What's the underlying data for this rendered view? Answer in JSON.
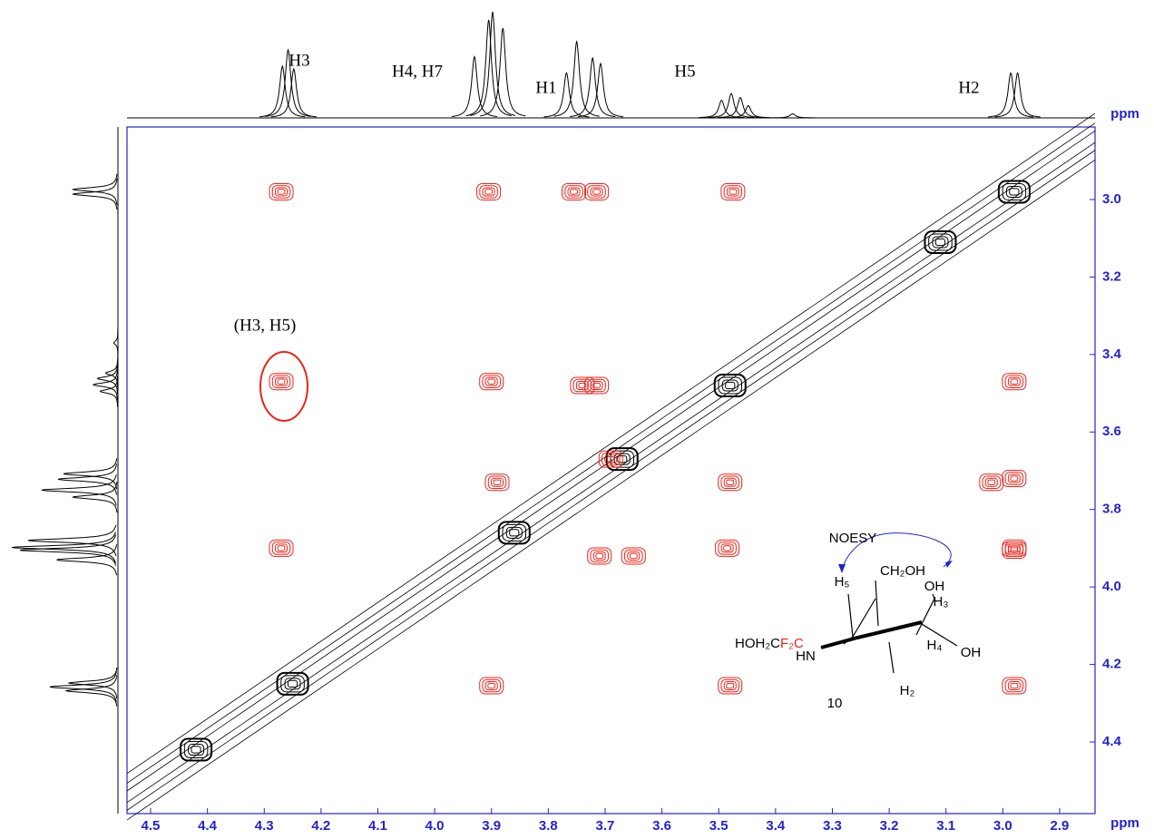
{
  "chart_data": {
    "type": "contour",
    "x_label": "ppm",
    "y_label": "ppm",
    "xlim": [
      4.5415,
      2.8377
    ],
    "ylim": [
      2.8127,
      4.585
    ],
    "xticks": [
      4.5,
      4.4,
      4.3,
      4.2,
      4.1,
      {
        "value": 4.0,
        "label": "4.0"
      },
      3.9,
      3.8,
      3.7,
      3.6,
      3.5,
      3.4,
      3.3,
      3.2,
      3.1,
      {
        "value": 3.0,
        "label": "3.0"
      },
      2.9
    ],
    "yticks": [
      {
        "value": 3.0,
        "label": "3.0"
      },
      3.2,
      3.4,
      3.6,
      3.8,
      {
        "value": 4.0,
        "label": "4.0"
      },
      4.2,
      4.4
    ],
    "tick_color": "#2323c8",
    "projection": {
      "color": "#000000",
      "x": [
        4.268,
        4.258,
        4.248,
        3.93,
        3.905,
        3.898,
        3.88,
        3.768,
        3.75,
        3.722,
        3.708,
        3.495,
        3.478,
        3.462,
        3.448,
        3.37,
        2.986,
        2.974
      ],
      "values": [
        38,
        50,
        36,
        45,
        72,
        78,
        66,
        33,
        56,
        44,
        40,
        13,
        18,
        15,
        9,
        3,
        33,
        33
      ]
    },
    "cross_peaks": {
      "color": "#e8251b",
      "x": [
        4.27,
        3.905,
        3.755,
        3.715,
        3.475,
        4.27,
        3.9,
        3.74,
        3.715,
        2.98,
        3.48,
        3.02,
        2.98,
        2.98,
        3.69,
        4.27,
        3.485,
        2.98,
        3.65,
        3.9,
        3.48,
        2.98,
        3.71,
        3.89
      ],
      "y": [
        2.98,
        2.98,
        2.98,
        2.98,
        2.98,
        3.47,
        3.47,
        3.48,
        3.48,
        3.47,
        3.73,
        3.73,
        3.72,
        3.905,
        3.67,
        3.9,
        3.9,
        3.9,
        3.92,
        4.255,
        4.255,
        4.255,
        3.92,
        3.73
      ]
    },
    "diagonal_peaks": {
      "color": "#000000",
      "x": [
        2.98,
        3.11,
        3.48,
        3.67,
        3.86,
        4.25,
        4.42
      ],
      "y": [
        2.98,
        3.11,
        3.48,
        3.67,
        3.86,
        4.25,
        4.42
      ]
    },
    "peak_labels": [
      "H3",
      "H4, H7",
      "H1",
      "H5",
      "H2"
    ],
    "annotation": "(H3, H5)",
    "molecule": {
      "arrow_label": "NOESY",
      "h5": "H₅",
      "ch2oh": "CH₂OH",
      "oh_top": "OH",
      "h3": "H₃",
      "sub_black": "HOH₂C",
      "sub_red": "F₂C",
      "hn": "HN",
      "h4": "H₄",
      "oh_bottom": "OH",
      "h2": "H₂",
      "number": "10"
    }
  }
}
